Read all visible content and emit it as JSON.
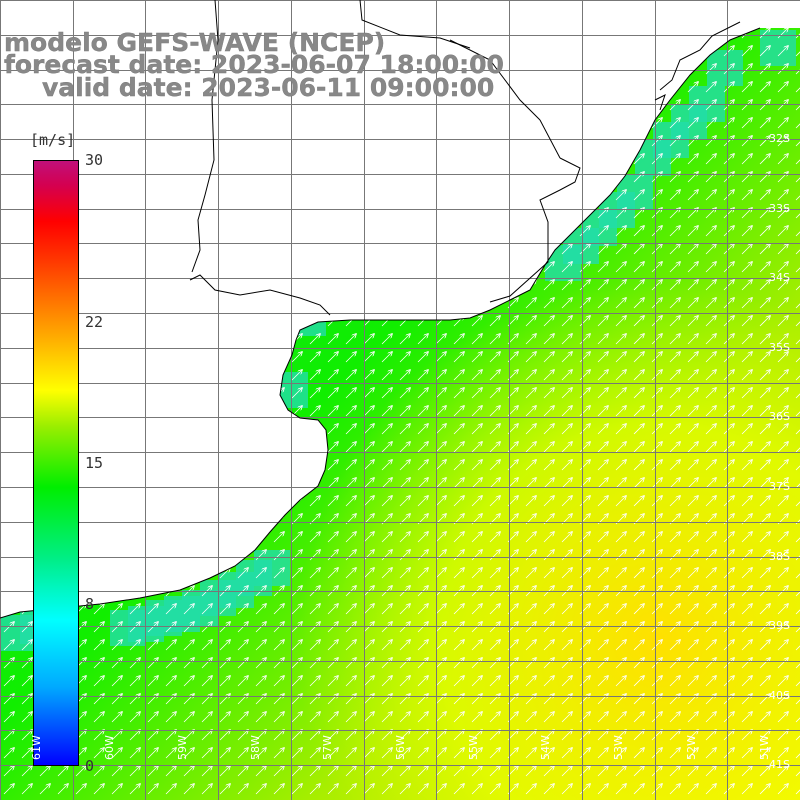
{
  "title": {
    "model": "modelo GEFS-WAVE (NCEP)",
    "forecast": "forecast date: 2023-06-07 18:00:00",
    "valid": "valid date: 2023-06-11 09:00:00"
  },
  "colorbar": {
    "unit": "[m/s]",
    "min": 0,
    "max": 30,
    "ticks": [
      {
        "label": "30",
        "value": 30
      },
      {
        "label": "22",
        "value": 22
      },
      {
        "label": "15",
        "value": 15
      },
      {
        "label": "8",
        "value": 8
      },
      {
        "label": "0",
        "value": 0
      }
    ]
  },
  "map": {
    "lon_range": [
      -61.5,
      -50.5
    ],
    "lat_range": [
      -41.5,
      -30
    ],
    "lat_labels": [
      "32S",
      "33S",
      "34S",
      "35S",
      "36S",
      "37S",
      "38S",
      "39S",
      "40S",
      "41S"
    ],
    "lon_labels": [
      "61W",
      "60W",
      "59W",
      "58W",
      "57W",
      "56W",
      "55W",
      "54W",
      "53W",
      "52W",
      "51W"
    ],
    "lat_values": [
      -32,
      -33,
      -34,
      -35,
      -36,
      -37,
      -38,
      -39,
      -40,
      -41
    ],
    "lon_values": [
      -61,
      -60,
      -59,
      -58,
      -57,
      -56,
      -55,
      -54,
      -53,
      -52,
      -51
    ],
    "wind_direction": "southwest-to-northeast",
    "land_color": "#ffffff",
    "arrow_color": "#ffffff"
  }
}
